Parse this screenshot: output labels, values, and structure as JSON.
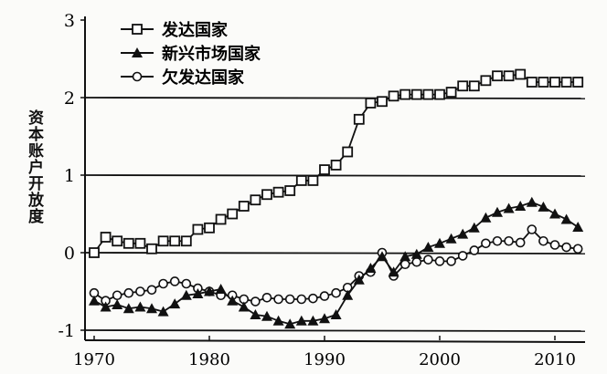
{
  "chart_data": {
    "type": "line",
    "title": "",
    "xlabel": "",
    "ylabel": "资本账户开放度",
    "xlim": [
      1970,
      2012
    ],
    "ylim": [
      -1,
      3
    ],
    "x_ticks": [
      "1970",
      "1980",
      "1990",
      "2000",
      "2010"
    ],
    "y_ticks": [
      "3",
      "2",
      "1",
      "0",
      "-1"
    ],
    "grid": "horizontal lines at 2, 1, 0, -1",
    "legend_position": "top-left",
    "x": [
      1970,
      1971,
      1972,
      1973,
      1974,
      1975,
      1976,
      1977,
      1978,
      1979,
      1980,
      1981,
      1982,
      1983,
      1984,
      1985,
      1986,
      1987,
      1988,
      1989,
      1990,
      1991,
      1992,
      1993,
      1994,
      1995,
      1996,
      1997,
      1998,
      1999,
      2000,
      2001,
      2002,
      2003,
      2004,
      2005,
      2006,
      2007,
      2008,
      2009,
      2010,
      2011,
      2012
    ],
    "series": [
      {
        "name": "发达国家",
        "marker": "square-open",
        "values": [
          0,
          0.2,
          0.15,
          0.12,
          0.12,
          0.05,
          0.15,
          0.15,
          0.15,
          0.3,
          0.32,
          0.43,
          0.5,
          0.6,
          0.68,
          0.75,
          0.78,
          0.8,
          0.93,
          0.93,
          1.07,
          1.13,
          1.3,
          1.72,
          1.93,
          1.95,
          2.02,
          2.04,
          2.04,
          2.04,
          2.04,
          2.07,
          2.15,
          2.15,
          2.22,
          2.28,
          2.28,
          2.3,
          2.2,
          2.2,
          2.2,
          2.2,
          2.2
        ]
      },
      {
        "name": "新兴市场国家",
        "marker": "triangle-filled",
        "values": [
          -0.62,
          -0.7,
          -0.67,
          -0.72,
          -0.7,
          -0.72,
          -0.76,
          -0.66,
          -0.55,
          -0.53,
          -0.5,
          -0.47,
          -0.62,
          -0.7,
          -0.8,
          -0.82,
          -0.88,
          -0.92,
          -0.88,
          -0.88,
          -0.85,
          -0.8,
          -0.55,
          -0.35,
          -0.2,
          -0.05,
          -0.25,
          -0.05,
          -0.02,
          0.07,
          0.12,
          0.18,
          0.24,
          0.32,
          0.45,
          0.52,
          0.57,
          0.6,
          0.65,
          0.59,
          0.5,
          0.43,
          0.33
        ]
      },
      {
        "name": "欠发达国家",
        "marker": "circle-open",
        "values": [
          -0.52,
          -0.62,
          -0.55,
          -0.52,
          -0.5,
          -0.48,
          -0.4,
          -0.37,
          -0.4,
          -0.46,
          -0.5,
          -0.55,
          -0.55,
          -0.6,
          -0.63,
          -0.58,
          -0.6,
          -0.6,
          -0.6,
          -0.59,
          -0.56,
          -0.52,
          -0.45,
          -0.3,
          -0.25,
          0.0,
          -0.3,
          -0.15,
          -0.12,
          -0.09,
          -0.11,
          -0.11,
          -0.04,
          0.03,
          0.12,
          0.15,
          0.15,
          0.13,
          0.3,
          0.15,
          0.1,
          0.07,
          0.05
        ]
      }
    ]
  }
}
